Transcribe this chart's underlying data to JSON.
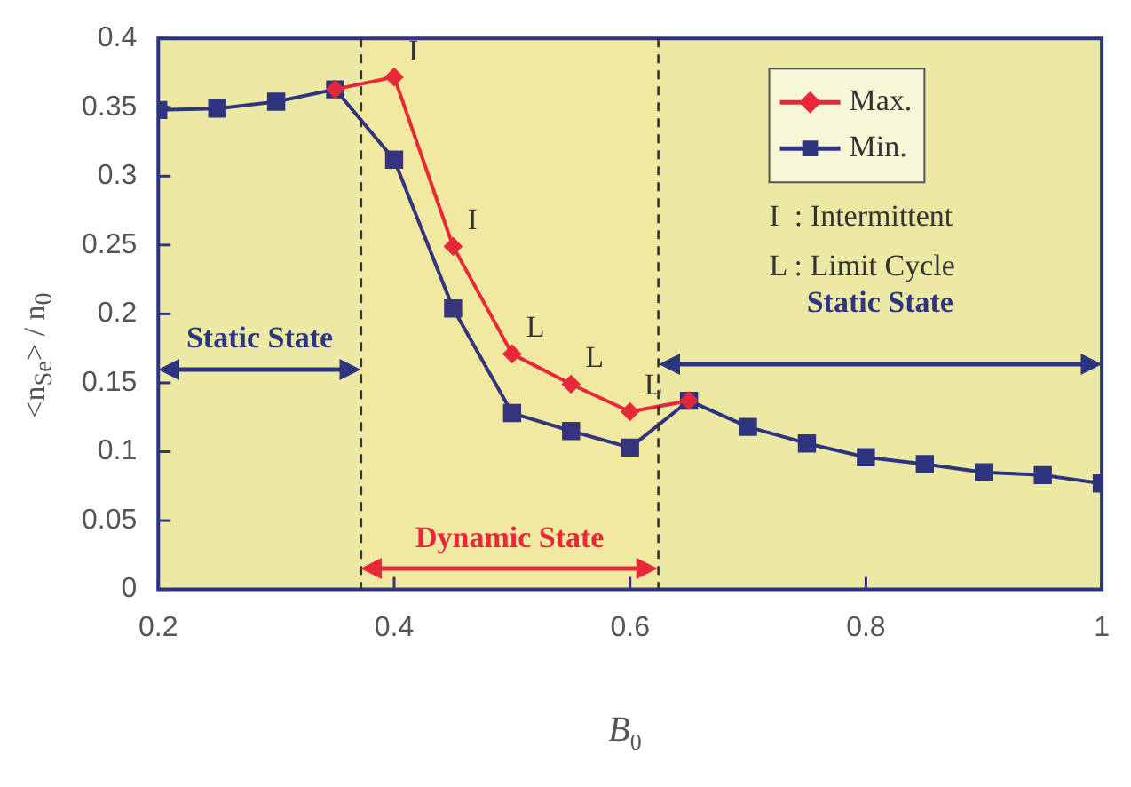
{
  "chart_data": {
    "type": "line",
    "xlabel": "B$_{0}$",
    "ylabel": "<n$_{Se}$> / n$_{0}$",
    "xlim": [
      0.2,
      1
    ],
    "xticks": [
      0.2,
      0.4,
      0.6,
      0.8,
      1
    ],
    "ylim": [
      0,
      0.4
    ],
    "yticks": [
      0,
      0.05,
      0.1,
      0.15,
      0.2,
      0.25,
      0.3,
      0.35,
      0.4
    ],
    "grid": false,
    "legend": "top right",
    "line_style": "solid",
    "series": [
      {
        "name": "Max.",
        "color": "#e8283a",
        "marker": "diamond",
        "x": [
          0.35,
          0.4,
          0.45,
          0.5,
          0.55,
          0.6,
          0.65
        ],
        "values": [
          0.363,
          0.372,
          0.249,
          0.171,
          0.149,
          0.129,
          0.137
        ]
      },
      {
        "name": "Min.",
        "color": "#2e3580",
        "marker": "square",
        "x": [
          0.2,
          0.25,
          0.3,
          0.35,
          0.4,
          0.45,
          0.5,
          0.55,
          0.6,
          0.65,
          0.7,
          0.75,
          0.8,
          0.85,
          0.9,
          0.95,
          1
        ],
        "values": [
          0.348,
          0.349,
          0.354,
          0.363,
          0.312,
          0.204,
          0.128,
          0.115,
          0.103,
          0.137,
          0.118,
          0.106,
          0.096,
          0.091,
          0.085,
          0.083,
          0.077
        ]
      }
    ],
    "ref_lines": [
      {
        "axis": "x",
        "value": 0.372,
        "line_style": "dashed",
        "color": "#333333"
      },
      {
        "axis": "x",
        "value": 0.624,
        "line_style": "dashed",
        "color": "#333333"
      }
    ],
    "bands": [
      {
        "axis": "x",
        "from": 0.2,
        "to": 0.372,
        "label": "Static State",
        "color": "#2e3580"
      },
      {
        "axis": "x",
        "from": 0.372,
        "to": 0.624,
        "label": "Dynamic State",
        "color": "#e8283a"
      },
      {
        "axis": "x",
        "from": 0.624,
        "to": 1,
        "label": "Static State",
        "color": "#2e3580"
      }
    ],
    "annotations": [
      {
        "text": "I",
        "x": 0.4,
        "y": 0.372
      },
      {
        "text": "I",
        "x": 0.45,
        "y": 0.249
      },
      {
        "text": "L",
        "x": 0.5,
        "y": 0.171
      },
      {
        "text": "L",
        "x": 0.55,
        "y": 0.149
      },
      {
        "text": "L",
        "x": 0.6,
        "y": 0.129
      },
      "I  : Intermittent",
      "L : Limit Cycle"
    ]
  }
}
